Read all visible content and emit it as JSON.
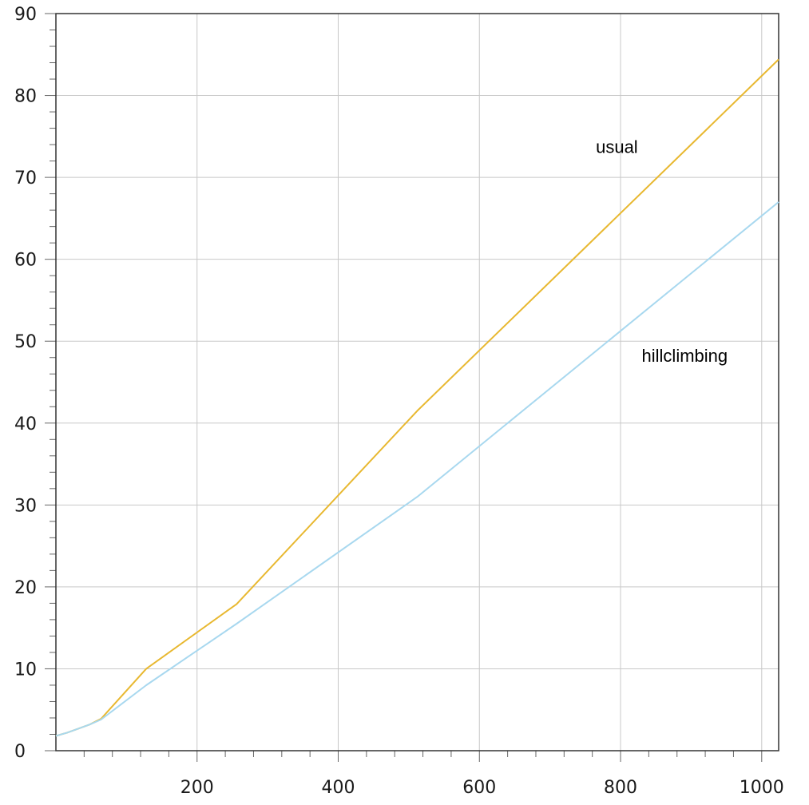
{
  "chart_data": {
    "type": "line",
    "title": "",
    "xlabel": "",
    "ylabel": "",
    "xlim": [
      0,
      1024
    ],
    "ylim": [
      0,
      90
    ],
    "x_ticks": [
      200,
      400,
      600,
      800,
      1000
    ],
    "y_ticks": [
      0,
      10,
      20,
      30,
      40,
      50,
      60,
      70,
      80,
      90
    ],
    "grid": true,
    "series": [
      {
        "name": "usual",
        "color": "#e8b830",
        "points": [
          [
            0,
            1.8
          ],
          [
            16,
            2.2
          ],
          [
            32,
            2.7
          ],
          [
            48,
            3.2
          ],
          [
            64,
            3.9
          ],
          [
            128,
            10.0
          ],
          [
            256,
            17.9
          ],
          [
            512,
            41.5
          ],
          [
            1024,
            84.4
          ]
        ]
      },
      {
        "name": "hillclimbing",
        "color": "#a8d8ef",
        "points": [
          [
            0,
            1.8
          ],
          [
            16,
            2.2
          ],
          [
            32,
            2.7
          ],
          [
            48,
            3.2
          ],
          [
            64,
            3.8
          ],
          [
            128,
            8.0
          ],
          [
            256,
            15.5
          ],
          [
            512,
            31.0
          ],
          [
            1024,
            67.0
          ]
        ]
      }
    ],
    "annotations": [
      {
        "text": "usual",
        "x": 765,
        "y": 73,
        "series": 0
      },
      {
        "text": "hillclimbing",
        "x": 830,
        "y": 47.5,
        "series": 1
      }
    ]
  }
}
